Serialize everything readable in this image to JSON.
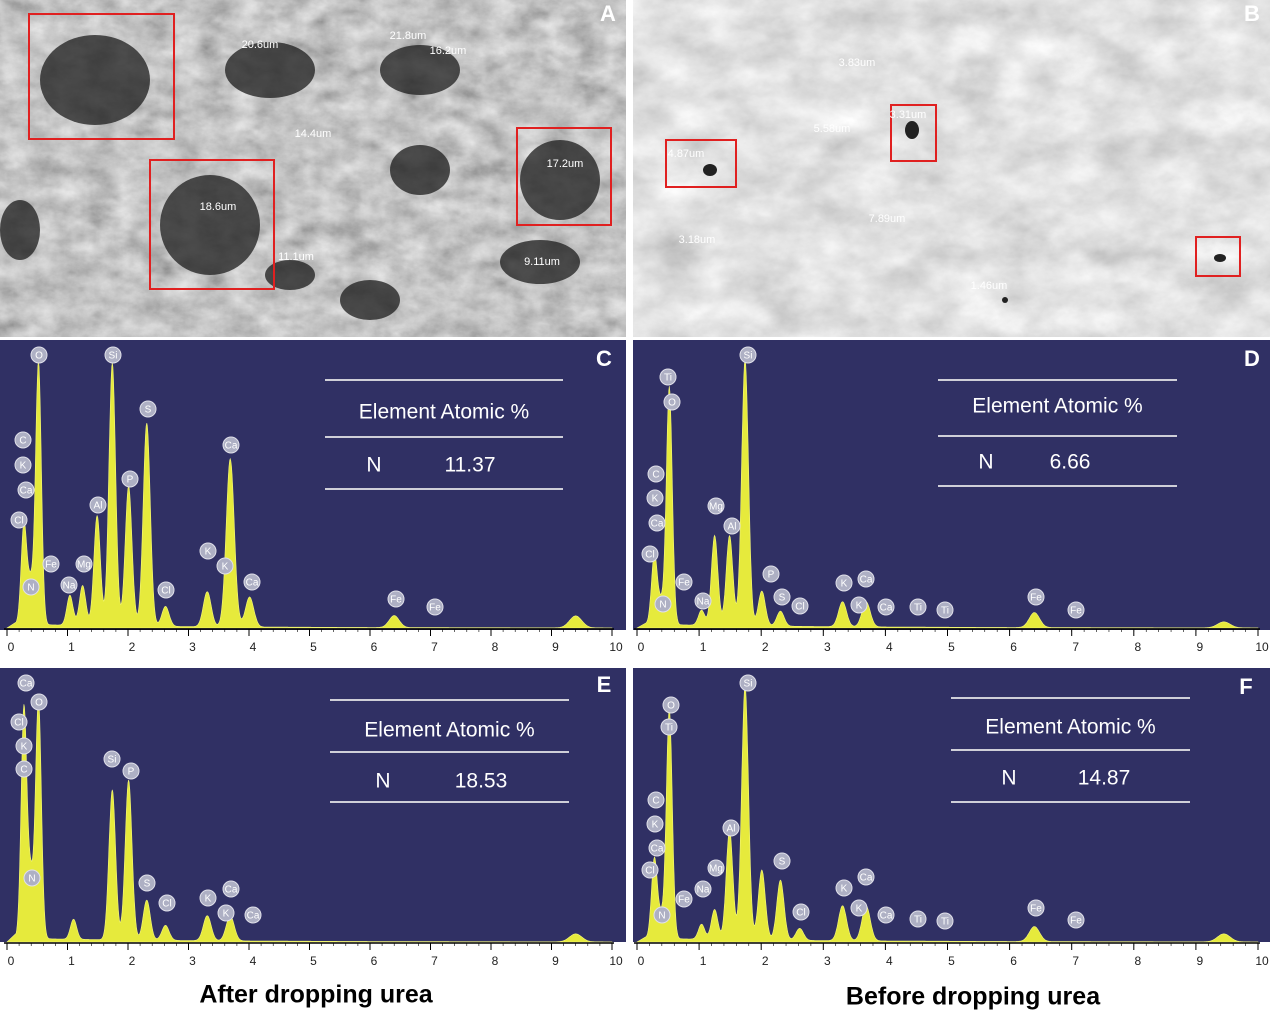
{
  "xticks": [
    0,
    1,
    2,
    3,
    4,
    5,
    6,
    7,
    8,
    9,
    10
  ],
  "panels": [
    {
      "label": "A",
      "measurements": [
        "20.6um",
        "21.8um",
        "16.2um",
        "14.4um",
        "17.2um",
        "18.6um",
        "11.1um",
        "9.11um"
      ]
    },
    {
      "label": "B",
      "measurements": [
        "3.83um",
        "3.31um",
        "5.58um",
        "4.87um",
        "7.89um",
        "3.18um",
        "1.46um"
      ]
    },
    {
      "label": "C",
      "peaks": [
        "O",
        "Si",
        "S",
        "Ca",
        "C",
        "K",
        "Ca",
        "Cl",
        "Al",
        "P",
        "Fe",
        "Mg",
        "Na",
        "N",
        "Cl",
        "K",
        "K",
        "Ca",
        "Fe",
        "Fe"
      ],
      "table": {
        "header": "Element Atomic %",
        "element": "N",
        "value": 11.37
      }
    },
    {
      "label": "D",
      "peaks": [
        "Ti",
        "O",
        "Si",
        "C",
        "K",
        "Ca",
        "Cl",
        "Mg",
        "Al",
        "P",
        "S",
        "Fe",
        "N",
        "Na",
        "Cl",
        "K",
        "Ca",
        "K",
        "Ca",
        "Ti",
        "Ti",
        "Fe",
        "Fe"
      ],
      "table": {
        "header": "Element Atomic %",
        "element": "N",
        "value": 6.66
      }
    },
    {
      "label": "E",
      "peaks": [
        "Ca",
        "O",
        "Cl",
        "K",
        "C",
        "Si",
        "P",
        "N",
        "S",
        "Cl",
        "K",
        "Ca",
        "K",
        "Ca"
      ],
      "table": {
        "header": "Element Atomic %",
        "element": "N",
        "value": 18.53
      }
    },
    {
      "label": "F",
      "peaks": [
        "Si",
        "O",
        "Ti",
        "C",
        "K",
        "Ca",
        "Cl",
        "Al",
        "Mg",
        "Na",
        "Fe",
        "N",
        "S",
        "Cl",
        "K",
        "Ca",
        "K",
        "Ca",
        "Ti",
        "Ti",
        "Fe",
        "Fe"
      ],
      "table": {
        "header": "Element Atomic %",
        "element": "N",
        "value": 14.87
      }
    }
  ],
  "captions": [
    "After dropping urea",
    "Before dropping urea"
  ]
}
